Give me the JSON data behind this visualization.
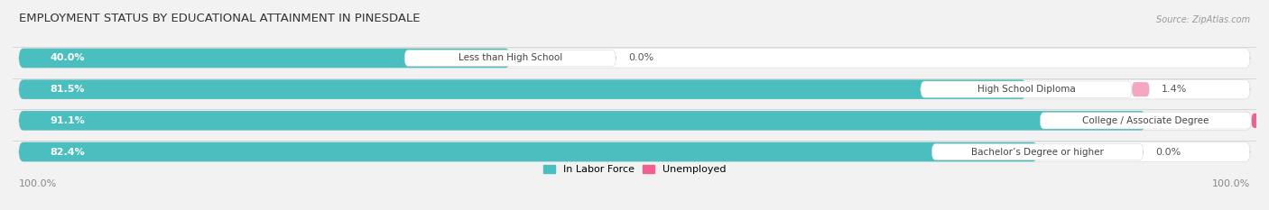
{
  "title": "EMPLOYMENT STATUS BY EDUCATIONAL ATTAINMENT IN PINESDALE",
  "source": "Source: ZipAtlas.com",
  "categories": [
    "Less than High School",
    "High School Diploma",
    "College / Associate Degree",
    "Bachelor’s Degree or higher"
  ],
  "labor_force": [
    40.0,
    81.5,
    91.1,
    82.4
  ],
  "unemployed": [
    0.0,
    1.4,
    3.9,
    0.0
  ],
  "labor_force_color": "#4BBFC0",
  "unemployed_color_1": "#F4A7C0",
  "unemployed_color_2": "#F4A7C0",
  "unemployed_color_3": "#F06090",
  "unemployed_color_4": "#F4A7C0",
  "background_color": "#f2f2f2",
  "bar_bg_color": "#FFFFFF",
  "bar_border_color": "#dddddd",
  "title_fontsize": 9.5,
  "label_fontsize": 8,
  "source_fontsize": 7,
  "tick_fontsize": 8,
  "bar_height": 0.62,
  "legend_labor": "In Labor Force",
  "legend_unemployed": "Unemployed",
  "x_left_label": "100.0%",
  "x_right_label": "100.0%",
  "total_width": 100
}
